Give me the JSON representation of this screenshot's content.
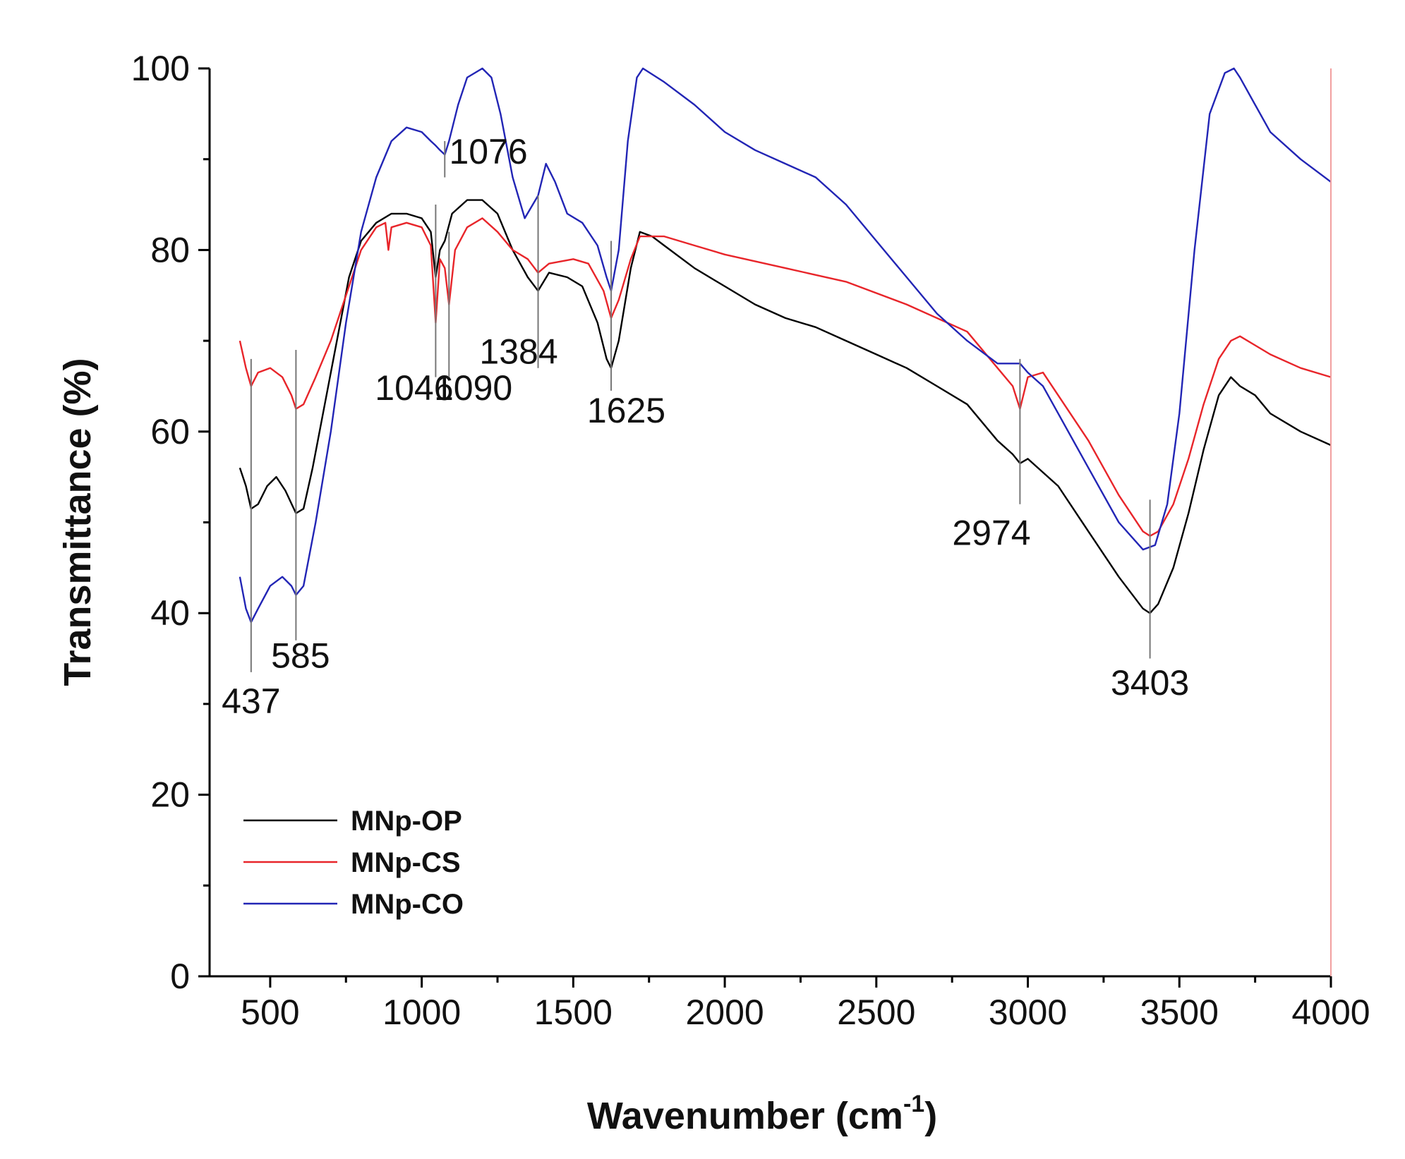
{
  "chart_data": {
    "type": "line",
    "title": "",
    "xlabel": "Wavenumber (cm",
    "xlabel_sup": "-1",
    "xlabel_end": ")",
    "ylabel": "Transmittance (%)",
    "xlim": [
      300,
      4000
    ],
    "ylim": [
      0,
      100
    ],
    "x_ticks": [
      500,
      1000,
      1500,
      2000,
      2500,
      3000,
      3500,
      4000
    ],
    "y_ticks": [
      0,
      20,
      40,
      60,
      80,
      100
    ],
    "legend_position": "bottom-left",
    "series": [
      {
        "name": "MNp-OP",
        "color": "#000000",
        "points": [
          [
            400,
            56
          ],
          [
            420,
            54
          ],
          [
            437,
            51.5
          ],
          [
            460,
            52
          ],
          [
            490,
            54
          ],
          [
            520,
            55
          ],
          [
            550,
            53.5
          ],
          [
            585,
            51
          ],
          [
            610,
            51.5
          ],
          [
            640,
            56
          ],
          [
            680,
            63
          ],
          [
            720,
            70
          ],
          [
            760,
            77
          ],
          [
            800,
            81
          ],
          [
            850,
            83
          ],
          [
            900,
            84
          ],
          [
            950,
            84
          ],
          [
            1000,
            83.5
          ],
          [
            1030,
            82
          ],
          [
            1046,
            77
          ],
          [
            1060,
            80
          ],
          [
            1076,
            81
          ],
          [
            1100,
            84
          ],
          [
            1150,
            85.5
          ],
          [
            1200,
            85.5
          ],
          [
            1250,
            84
          ],
          [
            1300,
            80
          ],
          [
            1350,
            77
          ],
          [
            1384,
            75.5
          ],
          [
            1420,
            77.5
          ],
          [
            1480,
            77
          ],
          [
            1530,
            76
          ],
          [
            1580,
            72
          ],
          [
            1610,
            68
          ],
          [
            1625,
            67
          ],
          [
            1650,
            70
          ],
          [
            1690,
            78
          ],
          [
            1720,
            82
          ],
          [
            1760,
            81.5
          ],
          [
            1800,
            80.5
          ],
          [
            1900,
            78
          ],
          [
            2000,
            76
          ],
          [
            2100,
            74
          ],
          [
            2200,
            72.5
          ],
          [
            2300,
            71.5
          ],
          [
            2400,
            70
          ],
          [
            2500,
            68.5
          ],
          [
            2600,
            67
          ],
          [
            2700,
            65
          ],
          [
            2800,
            63
          ],
          [
            2900,
            59
          ],
          [
            2950,
            57.5
          ],
          [
            2974,
            56.5
          ],
          [
            3000,
            57
          ],
          [
            3100,
            54
          ],
          [
            3200,
            49
          ],
          [
            3300,
            44
          ],
          [
            3380,
            40.5
          ],
          [
            3403,
            40
          ],
          [
            3430,
            41
          ],
          [
            3480,
            45
          ],
          [
            3530,
            51
          ],
          [
            3580,
            58
          ],
          [
            3630,
            64
          ],
          [
            3670,
            66
          ],
          [
            3700,
            65
          ],
          [
            3750,
            64
          ],
          [
            3800,
            62
          ],
          [
            3900,
            60
          ],
          [
            4000,
            58.5
          ]
        ]
      },
      {
        "name": "MNp-CS",
        "color": "#e8252a",
        "points": [
          [
            400,
            70
          ],
          [
            420,
            67
          ],
          [
            437,
            65
          ],
          [
            460,
            66.5
          ],
          [
            500,
            67
          ],
          [
            540,
            66
          ],
          [
            570,
            64
          ],
          [
            585,
            62.5
          ],
          [
            610,
            63
          ],
          [
            650,
            66
          ],
          [
            700,
            70
          ],
          [
            750,
            75
          ],
          [
            800,
            80
          ],
          [
            850,
            82.5
          ],
          [
            880,
            83
          ],
          [
            890,
            80
          ],
          [
            900,
            82.5
          ],
          [
            950,
            83
          ],
          [
            1000,
            82.5
          ],
          [
            1030,
            80.5
          ],
          [
            1046,
            72
          ],
          [
            1060,
            79
          ],
          [
            1076,
            78
          ],
          [
            1090,
            74
          ],
          [
            1110,
            80
          ],
          [
            1150,
            82.5
          ],
          [
            1200,
            83.5
          ],
          [
            1250,
            82
          ],
          [
            1300,
            80
          ],
          [
            1350,
            79
          ],
          [
            1384,
            77.5
          ],
          [
            1420,
            78.5
          ],
          [
            1500,
            79
          ],
          [
            1550,
            78.5
          ],
          [
            1600,
            75.5
          ],
          [
            1625,
            72.5
          ],
          [
            1650,
            74.5
          ],
          [
            1690,
            79
          ],
          [
            1720,
            81.5
          ],
          [
            1800,
            81.5
          ],
          [
            1900,
            80.5
          ],
          [
            2000,
            79.5
          ],
          [
            2200,
            78
          ],
          [
            2400,
            76.5
          ],
          [
            2600,
            74
          ],
          [
            2800,
            71
          ],
          [
            2900,
            67
          ],
          [
            2950,
            65
          ],
          [
            2974,
            62.5
          ],
          [
            3000,
            66
          ],
          [
            3050,
            66.5
          ],
          [
            3100,
            64
          ],
          [
            3200,
            59
          ],
          [
            3300,
            53
          ],
          [
            3380,
            49
          ],
          [
            3403,
            48.5
          ],
          [
            3430,
            49
          ],
          [
            3480,
            52
          ],
          [
            3530,
            57
          ],
          [
            3580,
            63
          ],
          [
            3630,
            68
          ],
          [
            3670,
            70
          ],
          [
            3700,
            70.5
          ],
          [
            3750,
            69.5
          ],
          [
            3800,
            68.5
          ],
          [
            3900,
            67
          ],
          [
            4000,
            66
          ]
        ]
      },
      {
        "name": "MNp-CO",
        "color": "#2225b5",
        "points": [
          [
            400,
            44
          ],
          [
            420,
            40.5
          ],
          [
            437,
            39
          ],
          [
            460,
            40.5
          ],
          [
            500,
            43
          ],
          [
            540,
            44
          ],
          [
            570,
            43
          ],
          [
            585,
            42
          ],
          [
            610,
            43
          ],
          [
            650,
            50
          ],
          [
            700,
            60
          ],
          [
            750,
            72
          ],
          [
            800,
            82
          ],
          [
            850,
            88
          ],
          [
            900,
            92
          ],
          [
            950,
            93.5
          ],
          [
            1000,
            93
          ],
          [
            1030,
            92
          ],
          [
            1046,
            91.5
          ],
          [
            1060,
            91
          ],
          [
            1076,
            90.5
          ],
          [
            1090,
            92
          ],
          [
            1120,
            96
          ],
          [
            1150,
            99
          ],
          [
            1200,
            100
          ],
          [
            1230,
            99
          ],
          [
            1260,
            95
          ],
          [
            1300,
            88
          ],
          [
            1340,
            83.5
          ],
          [
            1384,
            86
          ],
          [
            1410,
            89.5
          ],
          [
            1440,
            87.5
          ],
          [
            1480,
            84
          ],
          [
            1530,
            83
          ],
          [
            1580,
            80.5
          ],
          [
            1610,
            77
          ],
          [
            1625,
            75.5
          ],
          [
            1650,
            80
          ],
          [
            1680,
            92
          ],
          [
            1710,
            99
          ],
          [
            1730,
            100
          ],
          [
            1800,
            98.5
          ],
          [
            1900,
            96
          ],
          [
            2000,
            93
          ],
          [
            2100,
            91
          ],
          [
            2200,
            89.5
          ],
          [
            2300,
            88
          ],
          [
            2400,
            85
          ],
          [
            2500,
            81
          ],
          [
            2600,
            77
          ],
          [
            2700,
            73
          ],
          [
            2800,
            70
          ],
          [
            2900,
            67.5
          ],
          [
            2974,
            67.5
          ],
          [
            3000,
            66.5
          ],
          [
            3050,
            65
          ],
          [
            3100,
            62
          ],
          [
            3200,
            56
          ],
          [
            3300,
            50
          ],
          [
            3380,
            47
          ],
          [
            3420,
            47.5
          ],
          [
            3460,
            52
          ],
          [
            3500,
            62
          ],
          [
            3550,
            80
          ],
          [
            3600,
            95
          ],
          [
            3650,
            99.5
          ],
          [
            3680,
            100
          ],
          [
            3700,
            99
          ],
          [
            3750,
            96
          ],
          [
            3800,
            93
          ],
          [
            3900,
            90
          ],
          [
            4000,
            87.5
          ]
        ]
      }
    ],
    "peak_markers": [
      {
        "label": "437",
        "x": 437,
        "y_from": 33.5,
        "y_to": 68,
        "label_at": [
          437,
          29
        ]
      },
      {
        "label": "585",
        "x": 585,
        "y_from": 37,
        "y_to": 69,
        "label_at": [
          600,
          34
        ]
      },
      {
        "label": "1046",
        "x": 1046,
        "y_from": 66,
        "y_to": 85,
        "label_at": [
          975,
          63.5
        ]
      },
      {
        "label": "1090",
        "x": 1090,
        "y_from": 66,
        "y_to": 82,
        "label_at": [
          1170,
          63.5
        ]
      },
      {
        "label": "1076",
        "x": 1076,
        "y_from": 88,
        "y_to": 92,
        "label_at": [
          1220,
          89.5
        ]
      },
      {
        "label": "1384",
        "x": 1384,
        "y_from": 67,
        "y_to": 86,
        "label_at": [
          1320,
          67.5
        ]
      },
      {
        "label": "1625",
        "x": 1625,
        "y_from": 64.5,
        "y_to": 81,
        "label_at": [
          1675,
          61
        ]
      },
      {
        "label": "2974",
        "x": 2974,
        "y_from": 52,
        "y_to": 68,
        "label_at": [
          2880,
          47.5
        ]
      },
      {
        "label": "3403",
        "x": 3403,
        "y_from": 35,
        "y_to": 52.5,
        "label_at": [
          3403,
          31
        ]
      }
    ]
  }
}
